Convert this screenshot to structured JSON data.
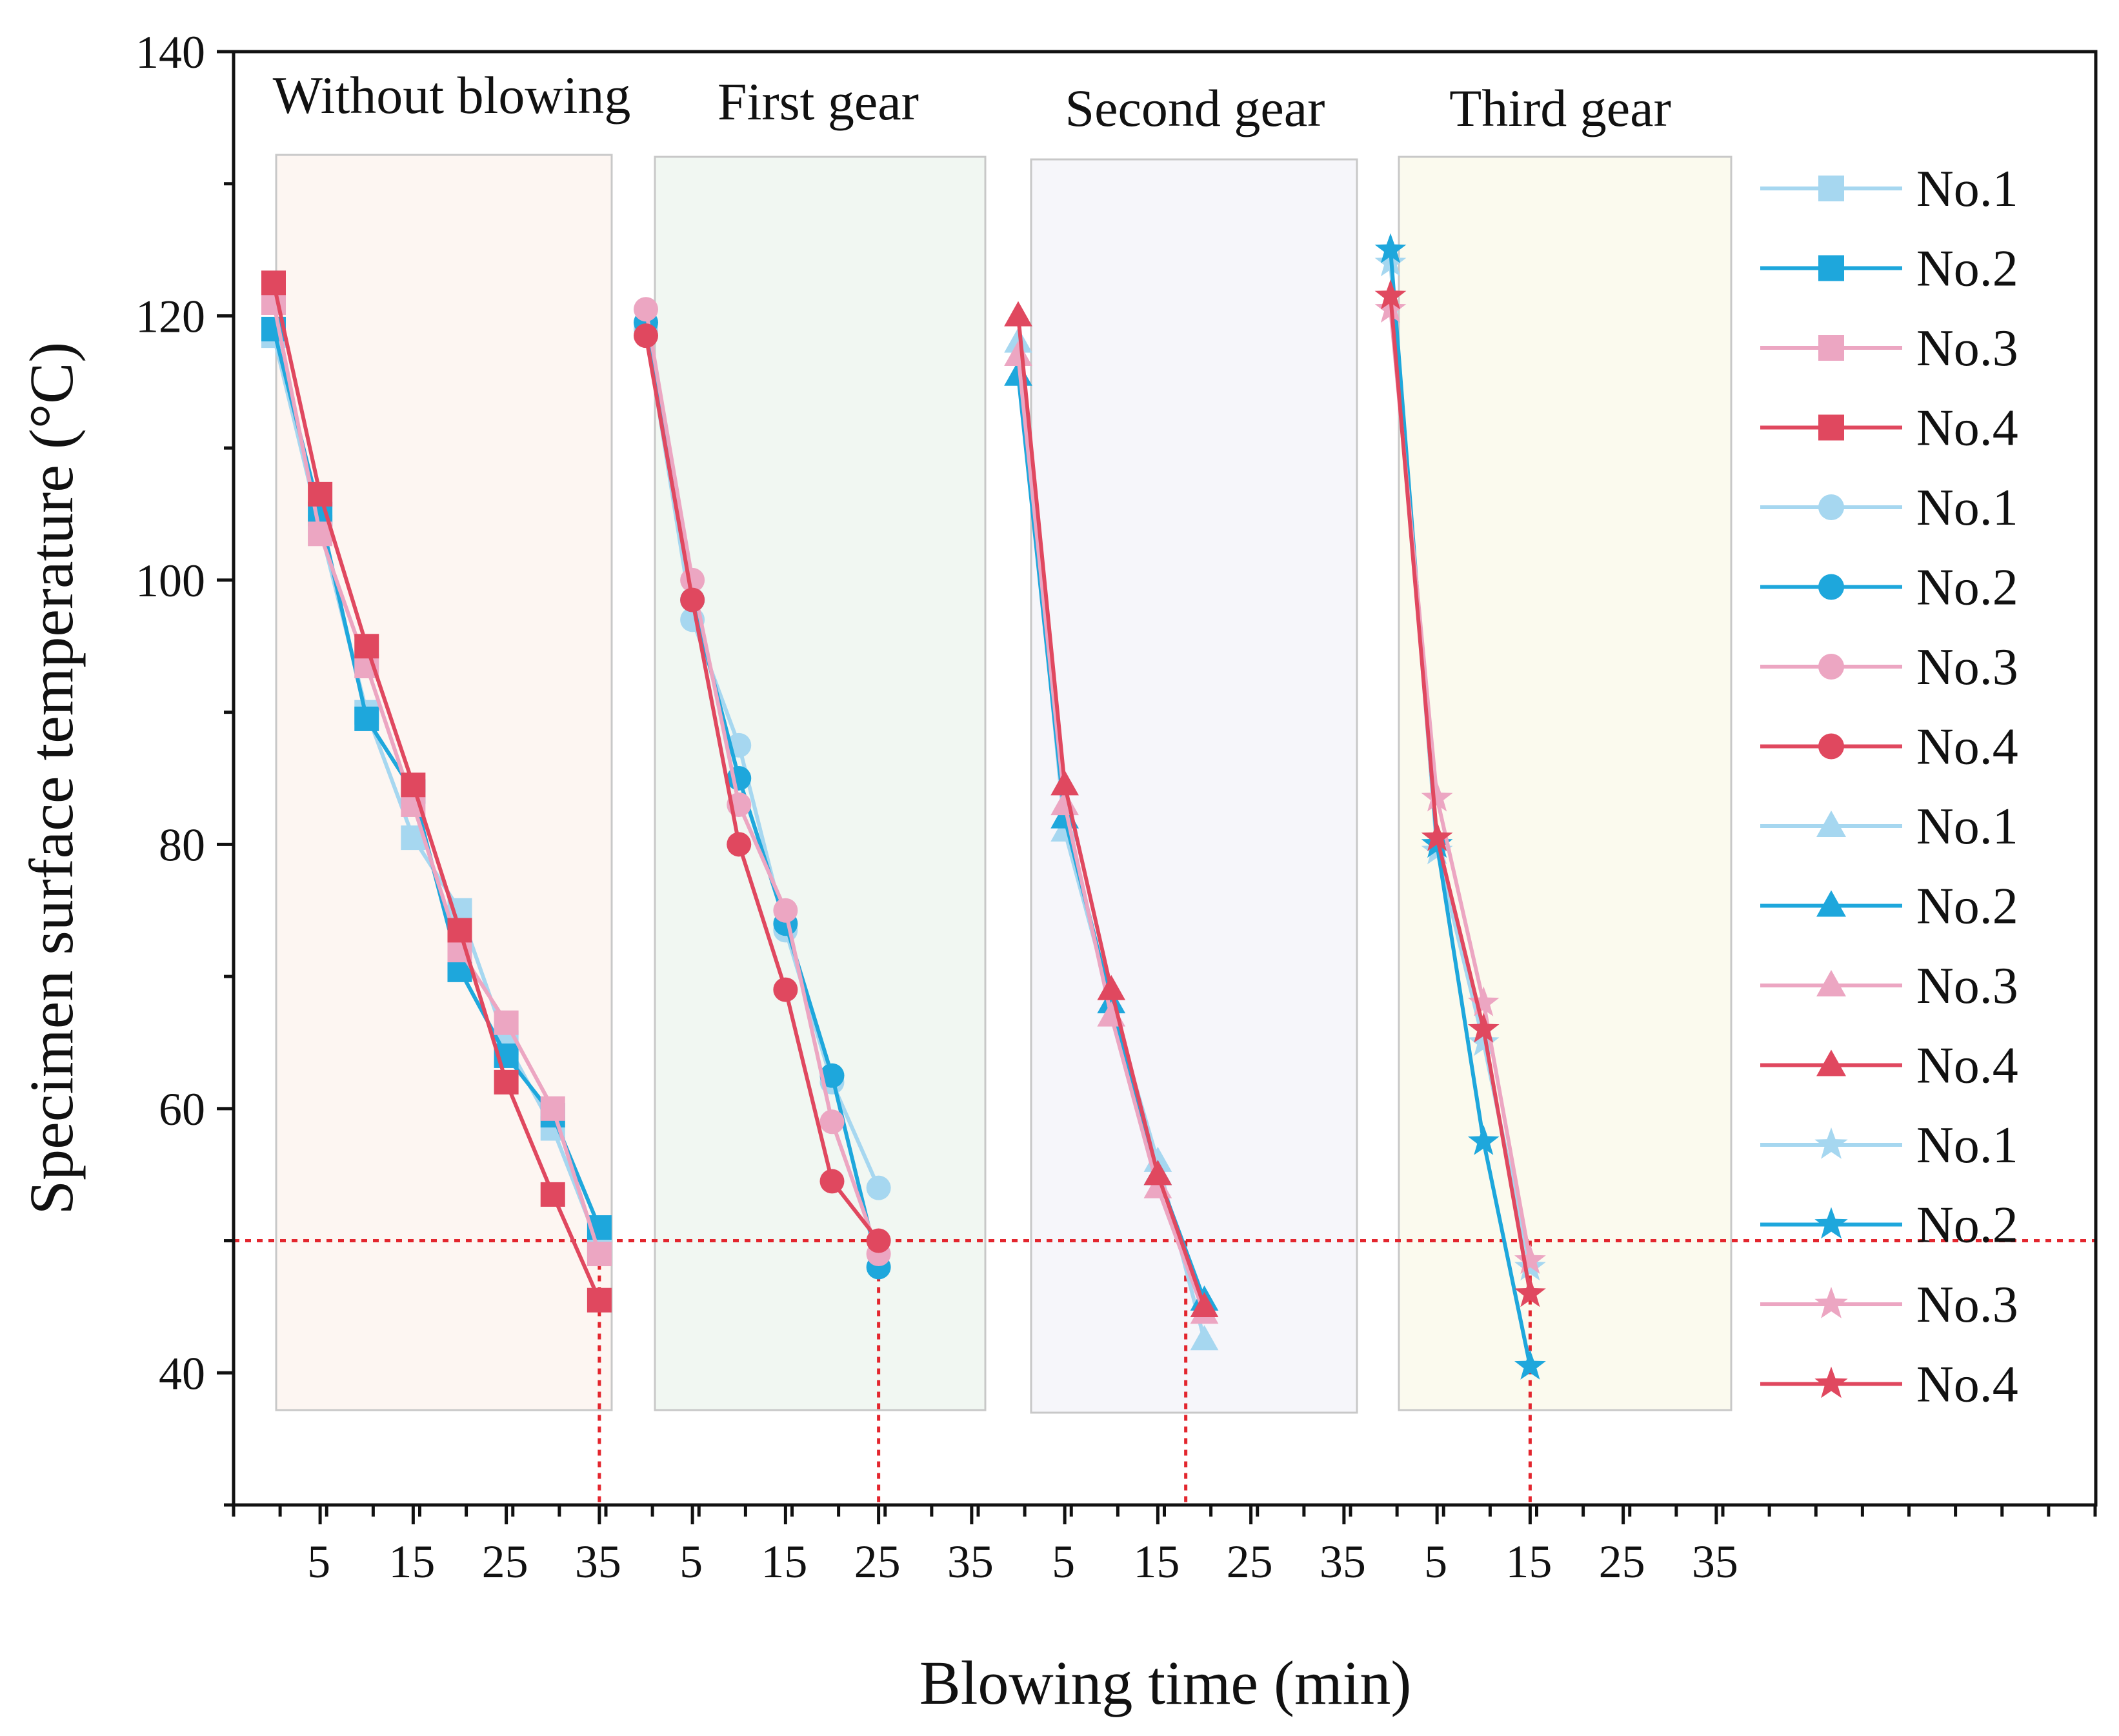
{
  "chart_data": {
    "type": "line",
    "xlabel": "Blowing time (min)",
    "ylabel": "Specimen surface temperature (°C)",
    "ylim": [
      30,
      140
    ],
    "yticks": [
      40,
      60,
      80,
      100,
      120,
      140
    ],
    "threshold": 50,
    "colors": {
      "No.1": "#a6d7f0",
      "No.2": "#1ea7dc",
      "No.3": "#eca6c2",
      "No.4": "#e0485f"
    },
    "panels": [
      {
        "label": "Without blowing",
        "shade": "#fdf6f2",
        "marker": "square",
        "xticks": [
          "5",
          "15",
          "25",
          "35"
        ],
        "cutoff": 35,
        "series": [
          {
            "name": "No.1",
            "x": [
              0,
              5,
              10,
              15,
              20,
              25,
              30,
              35
            ],
            "y": [
              118.5,
              104,
              90,
              80.5,
              75,
              65,
              58.5,
              49.5
            ]
          },
          {
            "name": "No.2",
            "x": [
              0,
              5,
              10,
              15,
              20,
              25,
              30,
              35
            ],
            "y": [
              119,
              105,
              89.5,
              84,
              70.5,
              64,
              59.5,
              51
            ]
          },
          {
            "name": "No.3",
            "x": [
              0,
              5,
              10,
              15,
              20,
              25,
              30,
              35
            ],
            "y": [
              121,
              103.5,
              93.5,
              83,
              72,
              66.5,
              60,
              49
            ]
          },
          {
            "name": "No.4",
            "x": [
              0,
              5,
              10,
              15,
              20,
              25,
              30,
              35
            ],
            "y": [
              122.5,
              106.5,
              95,
              84.5,
              73.5,
              62,
              53.5,
              45.5
            ]
          }
        ]
      },
      {
        "label": "First gear",
        "shade": "#f1f7f2",
        "marker": "circle",
        "xticks": [
          "5",
          "15",
          "25",
          "35"
        ],
        "cutoff": 25,
        "series": [
          {
            "name": "No.1",
            "x": [
              0,
              5,
              10,
              15,
              20,
              25
            ],
            "y": [
              119,
              97,
              87.5,
              73.5,
              62,
              54
            ]
          },
          {
            "name": "No.2",
            "x": [
              0,
              5,
              10,
              15,
              20,
              25
            ],
            "y": [
              119.5,
              98.5,
              85,
              74,
              62.5,
              48
            ]
          },
          {
            "name": "No.3",
            "x": [
              0,
              5,
              10,
              15,
              20,
              25
            ],
            "y": [
              120.5,
              100,
              83,
              75,
              59,
              49
            ]
          },
          {
            "name": "No.4",
            "x": [
              0,
              5,
              10,
              15,
              20,
              25
            ],
            "y": [
              118.5,
              98.5,
              80,
              69,
              54.5,
              50
            ]
          }
        ]
      },
      {
        "label": "Second gear",
        "shade": "#f6f6fa",
        "marker": "triangle",
        "xticks": [
          "5",
          "15",
          "25",
          "35"
        ],
        "cutoff": 18,
        "series": [
          {
            "name": "No.1",
            "x": [
              0,
              5,
              10,
              15,
              20
            ],
            "y": [
              118,
              81,
              68,
              56,
              42.5
            ]
          },
          {
            "name": "No.2",
            "x": [
              0,
              5,
              10,
              15,
              20
            ],
            "y": [
              115.5,
              82,
              68,
              55,
              45.5
            ]
          },
          {
            "name": "No.3",
            "x": [
              0,
              5,
              10,
              15,
              20
            ],
            "y": [
              117,
              83,
              67,
              54,
              44.5
            ]
          },
          {
            "name": "No.4",
            "x": [
              0,
              5,
              10,
              15,
              20
            ],
            "y": [
              120,
              84.5,
              69,
              55,
              45
            ]
          }
        ]
      },
      {
        "label": "Third gear",
        "shade": "#fbfaee",
        "marker": "star",
        "xticks": [
          "5",
          "15",
          "25",
          "35"
        ],
        "cutoff": 15,
        "series": [
          {
            "name": "No.1",
            "x": [
              0,
              5,
              10,
              15
            ],
            "y": [
              124,
              79.5,
              65,
              48
            ]
          },
          {
            "name": "No.2",
            "x": [
              0,
              5,
              10,
              15
            ],
            "y": [
              125,
              80,
              57.5,
              40.5
            ]
          },
          {
            "name": "No.3",
            "x": [
              0,
              5,
              10,
              15
            ],
            "y": [
              120.5,
              83.5,
              68,
              48.5
            ]
          },
          {
            "name": "No.4",
            "x": [
              0,
              5,
              10,
              15
            ],
            "y": [
              121.5,
              80.5,
              66,
              46
            ]
          }
        ]
      }
    ]
  }
}
